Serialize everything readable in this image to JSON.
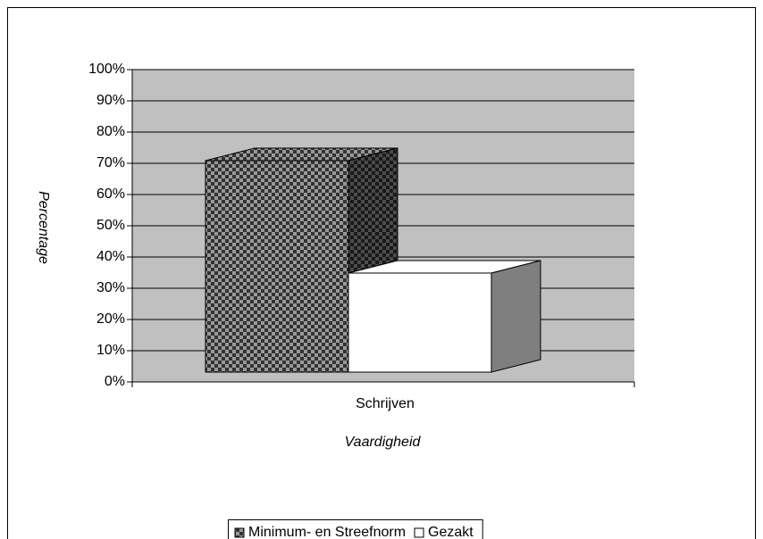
{
  "chart_data": {
    "type": "bar3d",
    "categories": [
      "Schrijven"
    ],
    "series": [
      {
        "name": "Minimum- en Streefnorm",
        "color": "#333333",
        "values": [
          68
        ]
      },
      {
        "name": "Gezakt",
        "color": "#ffffff",
        "values": [
          32
        ]
      }
    ],
    "x_label": "Vaardigheid",
    "y_label": "Percentage",
    "ylim": [
      0,
      100
    ],
    "yticks": [
      {
        "value": 0,
        "label": "0%"
      },
      {
        "value": 10,
        "label": "10%"
      },
      {
        "value": 20,
        "label": "20%"
      },
      {
        "value": 30,
        "label": "30%"
      },
      {
        "value": 40,
        "label": "40%"
      },
      {
        "value": 50,
        "label": "50%"
      },
      {
        "value": 60,
        "label": "60%"
      },
      {
        "value": 70,
        "label": "70%"
      },
      {
        "value": 80,
        "label": "80%"
      },
      {
        "value": 90,
        "label": "90%"
      },
      {
        "value": 100,
        "label": "100%"
      }
    ],
    "grid": true,
    "legend": "bottom"
  }
}
